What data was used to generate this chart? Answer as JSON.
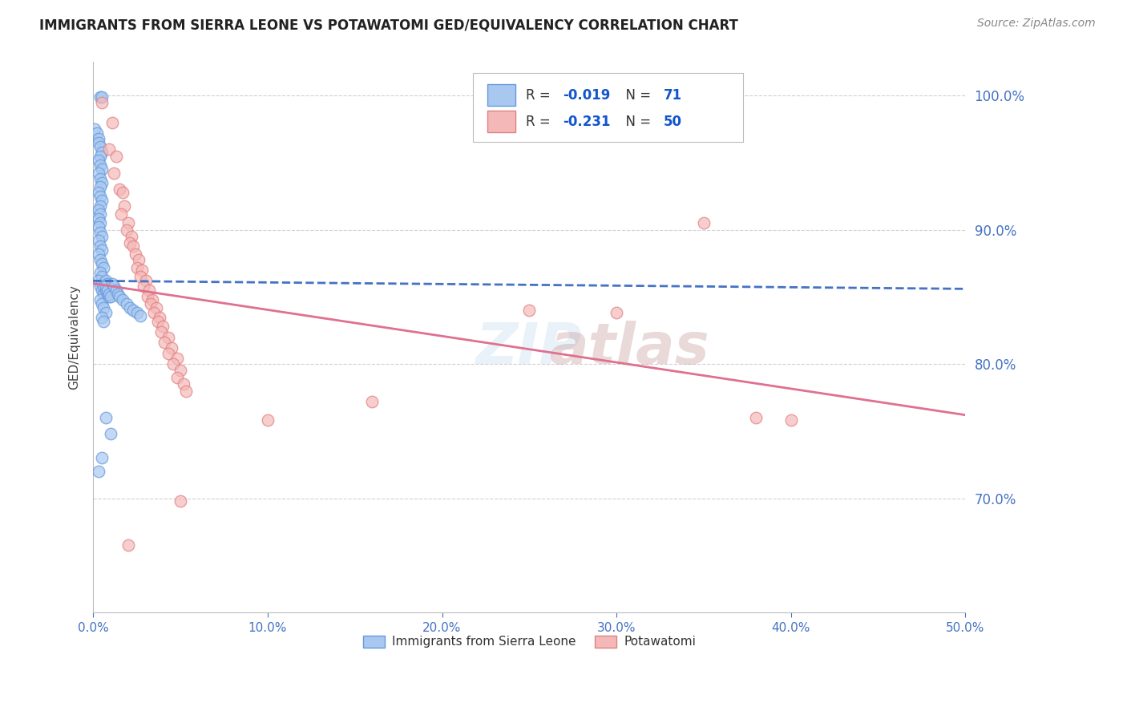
{
  "title": "IMMIGRANTS FROM SIERRA LEONE VS POTAWATOMI GED/EQUIVALENCY CORRELATION CHART",
  "source": "Source: ZipAtlas.com",
  "ylabel": "GED/Equivalency",
  "blue_label": "Immigrants from Sierra Leone",
  "pink_label": "Potawatomi",
  "blue_R": "-0.019",
  "blue_N": "71",
  "pink_R": "-0.231",
  "pink_N": "50",
  "xlim": [
    0.0,
    0.5
  ],
  "ylim": [
    0.615,
    1.025
  ],
  "yticks": [
    0.7,
    0.8,
    0.9,
    1.0
  ],
  "xticks": [
    0.0,
    0.1,
    0.2,
    0.3,
    0.4,
    0.5
  ],
  "blue_fill": "#A8C8F0",
  "blue_edge": "#6699DD",
  "pink_fill": "#F5B8B8",
  "pink_edge": "#E08080",
  "blue_line": "#4472C4",
  "pink_line": "#E07090",
  "bg_color": "#FFFFFF",
  "grid_color": "#CCCCCC",
  "blue_scatter_x": [
    0.004,
    0.005,
    0.001,
    0.002,
    0.003,
    0.003,
    0.004,
    0.005,
    0.004,
    0.003,
    0.004,
    0.005,
    0.003,
    0.004,
    0.005,
    0.004,
    0.003,
    0.004,
    0.005,
    0.004,
    0.003,
    0.004,
    0.003,
    0.004,
    0.003,
    0.004,
    0.005,
    0.003,
    0.004,
    0.005,
    0.003,
    0.004,
    0.005,
    0.006,
    0.004,
    0.005,
    0.003,
    0.004,
    0.005,
    0.006,
    0.004,
    0.005,
    0.006,
    0.007,
    0.005,
    0.006,
    0.007,
    0.008,
    0.006,
    0.007,
    0.008,
    0.009,
    0.007,
    0.008,
    0.009,
    0.01,
    0.011,
    0.012,
    0.013,
    0.014,
    0.015,
    0.017,
    0.019,
    0.021,
    0.023,
    0.025,
    0.027,
    0.007,
    0.01,
    0.005,
    0.003
  ],
  "blue_scatter_y": [
    0.999,
    0.999,
    0.975,
    0.972,
    0.968,
    0.965,
    0.962,
    0.958,
    0.955,
    0.952,
    0.948,
    0.945,
    0.942,
    0.938,
    0.935,
    0.932,
    0.928,
    0.925,
    0.922,
    0.918,
    0.915,
    0.912,
    0.908,
    0.905,
    0.902,
    0.898,
    0.895,
    0.892,
    0.888,
    0.885,
    0.882,
    0.878,
    0.875,
    0.872,
    0.868,
    0.865,
    0.862,
    0.858,
    0.855,
    0.852,
    0.848,
    0.845,
    0.842,
    0.838,
    0.835,
    0.832,
    0.862,
    0.86,
    0.858,
    0.855,
    0.852,
    0.85,
    0.858,
    0.855,
    0.852,
    0.85,
    0.86,
    0.858,
    0.855,
    0.852,
    0.85,
    0.848,
    0.845,
    0.842,
    0.84,
    0.838,
    0.836,
    0.76,
    0.748,
    0.73,
    0.72
  ],
  "pink_scatter_x": [
    0.005,
    0.011,
    0.009,
    0.013,
    0.012,
    0.015,
    0.017,
    0.018,
    0.016,
    0.02,
    0.019,
    0.022,
    0.021,
    0.023,
    0.024,
    0.026,
    0.025,
    0.028,
    0.027,
    0.03,
    0.029,
    0.032,
    0.031,
    0.034,
    0.033,
    0.036,
    0.035,
    0.038,
    0.037,
    0.04,
    0.039,
    0.043,
    0.041,
    0.045,
    0.043,
    0.048,
    0.046,
    0.05,
    0.048,
    0.052,
    0.053,
    0.35,
    0.25,
    0.3,
    0.38,
    0.1,
    0.05,
    0.4,
    0.02,
    0.16
  ],
  "pink_scatter_y": [
    0.995,
    0.98,
    0.96,
    0.955,
    0.942,
    0.93,
    0.928,
    0.918,
    0.912,
    0.905,
    0.9,
    0.895,
    0.89,
    0.888,
    0.882,
    0.878,
    0.872,
    0.87,
    0.865,
    0.862,
    0.858,
    0.855,
    0.85,
    0.848,
    0.845,
    0.842,
    0.838,
    0.835,
    0.832,
    0.828,
    0.824,
    0.82,
    0.816,
    0.812,
    0.808,
    0.804,
    0.8,
    0.795,
    0.79,
    0.785,
    0.78,
    0.905,
    0.84,
    0.838,
    0.76,
    0.758,
    0.698,
    0.758,
    0.665,
    0.772
  ],
  "blue_trendline_x": [
    0.0,
    0.5
  ],
  "blue_trendline_y": [
    0.862,
    0.856
  ],
  "pink_trendline_x": [
    0.0,
    0.5
  ],
  "pink_trendline_y": [
    0.86,
    0.762
  ],
  "legend_R_eq_color": "#333333",
  "legend_val_color": "#1155CC",
  "legend_N_eq_color": "#333333",
  "title_color": "#222222",
  "source_color": "#888888",
  "axis_color": "#4472C4",
  "ylabel_color": "#444444"
}
